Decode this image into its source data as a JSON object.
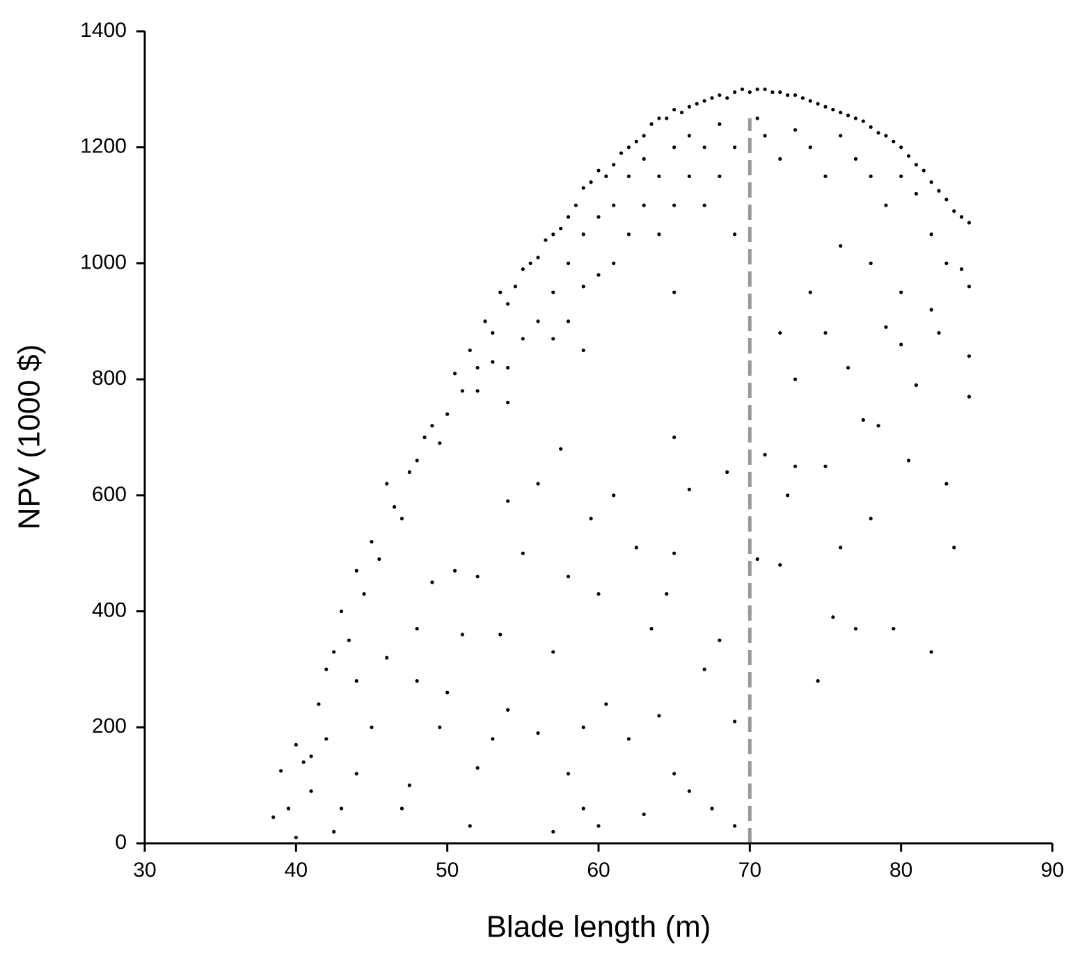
{
  "chart_data": {
    "type": "scatter",
    "xlabel": "Blade length (m)",
    "ylabel": "NPV (1000 $)",
    "xlim": [
      30,
      90
    ],
    "xticks": [
      30,
      40,
      50,
      60,
      70,
      80,
      90
    ],
    "ylim": [
      0,
      1400
    ],
    "yticks": [
      0,
      200,
      400,
      600,
      800,
      1000,
      1200,
      1400
    ],
    "color": "#000000",
    "vline": {
      "x": 70,
      "y": [
        0,
        1250
      ],
      "color": "#999999"
    },
    "x": [
      38.5,
      39,
      39.5,
      40,
      40.5,
      41,
      41.5,
      42,
      42.5,
      43,
      43.5,
      44,
      44.5,
      45,
      45.5,
      46,
      46.5,
      47,
      47.5,
      48,
      48.5,
      49,
      49.5,
      50,
      50.5,
      51,
      51.5,
      52,
      52.5,
      53,
      53.5,
      54,
      54.5,
      55,
      55.5,
      56,
      56.5,
      57,
      57.5,
      58,
      58.5,
      59,
      59.5,
      60,
      60.5,
      61,
      61.5,
      62,
      62.5,
      63,
      63.5,
      64,
      64.5,
      65,
      65.5,
      66,
      66.5,
      67,
      67.5,
      68,
      68.5,
      69,
      69.5,
      70,
      70.5,
      71,
      71.5,
      72,
      72.5,
      73,
      73.5,
      74,
      74.5,
      75,
      75.5,
      76,
      76.5,
      77,
      77.5,
      78,
      78.5,
      79,
      79.5,
      80,
      80.5,
      81,
      81.5,
      82,
      82.5,
      83,
      83.5,
      84,
      84.5,
      52,
      53,
      54,
      54,
      55,
      56,
      57,
      57,
      58,
      58,
      59,
      59,
      59,
      60,
      60,
      61,
      61,
      62,
      62,
      63,
      63,
      64,
      64,
      65,
      65,
      65,
      66,
      66,
      67,
      67,
      68,
      68,
      69,
      69,
      70.5,
      71,
      72,
      73,
      74,
      75,
      76,
      77,
      78,
      79,
      80,
      81,
      82,
      83,
      84,
      84.5,
      40,
      41,
      42,
      42.5,
      43,
      44,
      44,
      45,
      46,
      47,
      47.5,
      48,
      48,
      49,
      49.5,
      50,
      50.5,
      51,
      51.5,
      52,
      52,
      53,
      53.5,
      54,
      54,
      55,
      56,
      56,
      57,
      57,
      57.5,
      58,
      58,
      59,
      59,
      59.5,
      60,
      60,
      60.5,
      61,
      62,
      62.5,
      63,
      63.5,
      64,
      64.5,
      65,
      65,
      65,
      66,
      66,
      67,
      67.5,
      68,
      68.5,
      69,
      69,
      70,
      70.5,
      71,
      72,
      72.5,
      73,
      73,
      74.5,
      75,
      75,
      75.5,
      76,
      76.5,
      77,
      77.5,
      78,
      78.5,
      79,
      79.5,
      80,
      80.5,
      81,
      82,
      82.5,
      83,
      83.5,
      84.5,
      84.5,
      72,
      74,
      76,
      78,
      80,
      82
    ],
    "y": [
      45,
      125,
      60,
      170,
      140,
      150,
      240,
      300,
      330,
      400,
      350,
      470,
      430,
      520,
      490,
      620,
      580,
      560,
      640,
      660,
      700,
      720,
      690,
      740,
      810,
      780,
      850,
      820,
      900,
      880,
      950,
      930,
      960,
      990,
      1000,
      1010,
      1040,
      1050,
      1060,
      1080,
      1100,
      1130,
      1140,
      1160,
      1150,
      1170,
      1190,
      1200,
      1210,
      1220,
      1240,
      1250,
      1250,
      1265,
      1260,
      1270,
      1275,
      1280,
      1285,
      1290,
      1285,
      1295,
      1300,
      1295,
      1300,
      1300,
      1295,
      1295,
      1290,
      1290,
      1285,
      1280,
      1275,
      1270,
      1265,
      1260,
      1255,
      1250,
      1245,
      1235,
      1225,
      1220,
      1210,
      1200,
      1185,
      1170,
      1160,
      1140,
      1125,
      1110,
      1090,
      1080,
      1070,
      780,
      830,
      820,
      760,
      870,
      900,
      950,
      870,
      1000,
      900,
      1050,
      960,
      850,
      1080,
      980,
      1100,
      1000,
      1150,
      1050,
      1180,
      1100,
      1150,
      1050,
      1200,
      1100,
      950,
      1220,
      1150,
      1200,
      1100,
      1240,
      1150,
      1200,
      1050,
      1250,
      1220,
      1180,
      1230,
      1200,
      1150,
      1220,
      1180,
      1150,
      1100,
      1150,
      1120,
      1050,
      1000,
      990,
      960,
      10,
      90,
      180,
      20,
      60,
      120,
      280,
      200,
      320,
      60,
      100,
      280,
      370,
      450,
      200,
      260,
      470,
      360,
      30,
      130,
      460,
      180,
      360,
      230,
      590,
      500,
      190,
      620,
      20,
      330,
      680,
      120,
      460,
      200,
      60,
      560,
      30,
      430,
      240,
      600,
      180,
      510,
      50,
      370,
      220,
      430,
      120,
      500,
      700,
      90,
      610,
      300,
      60,
      350,
      640,
      30,
      210,
      400,
      490,
      670,
      480,
      600,
      800,
      650,
      280,
      880,
      650,
      390,
      510,
      820,
      370,
      730,
      560,
      720,
      890,
      370,
      860,
      660,
      790,
      330,
      880,
      620,
      510,
      770,
      840,
      880,
      950,
      1030,
      1000,
      950,
      920
    ]
  }
}
